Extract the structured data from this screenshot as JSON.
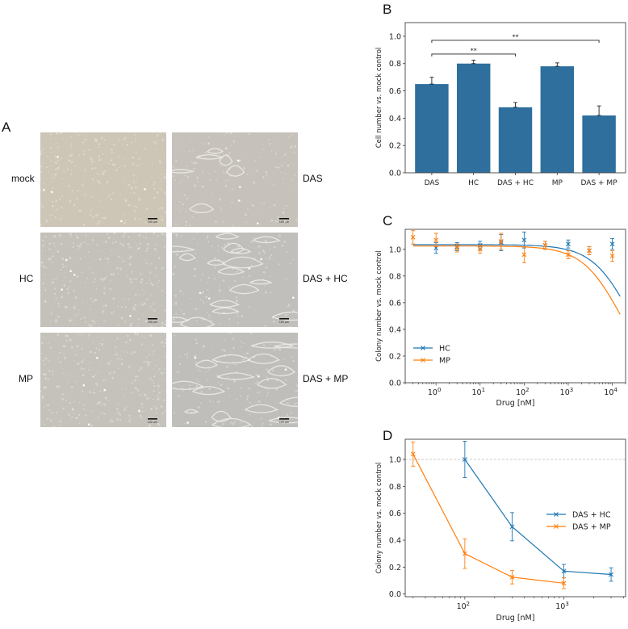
{
  "figure": {
    "panels": {
      "A": {
        "letter": "A",
        "row_labels": [
          "mock",
          "HC",
          "MP"
        ],
        "col2_labels": [
          "DAS",
          "DAS + HC",
          "DAS + MP"
        ],
        "scale_bar": "100 µm",
        "images": [
          {
            "condition": "mock",
            "tone": "#cdc5b6",
            "pattern": "confluent"
          },
          {
            "condition": "DAS",
            "tone": "#c6c2bb",
            "pattern": "patchy"
          },
          {
            "condition": "HC",
            "tone": "#c4c1bb",
            "pattern": "confluent"
          },
          {
            "condition": "DAS + HC",
            "tone": "#c1bfbb",
            "pattern": "sparse"
          },
          {
            "condition": "MP",
            "tone": "#c5c2bc",
            "pattern": "confluent"
          },
          {
            "condition": "DAS + MP",
            "tone": "#c0bebb",
            "pattern": "sparse"
          }
        ]
      },
      "B": {
        "letter": "B"
      },
      "C": {
        "letter": "C"
      },
      "D": {
        "letter": "D"
      }
    }
  },
  "chart_data": [
    {
      "panel": "B",
      "type": "bar",
      "categories": [
        "DAS",
        "HC",
        "DAS + HC",
        "MP",
        "DAS + MP"
      ],
      "values": [
        0.65,
        0.8,
        0.48,
        0.78,
        0.42
      ],
      "errors": [
        0.05,
        0.025,
        0.035,
        0.025,
        0.07
      ],
      "color": "#2e6f9e",
      "xlabel": "",
      "ylabel": "Cell number vs. mock control",
      "ylim": [
        0,
        1.1
      ],
      "yticks": [
        0.0,
        0.2,
        0.4,
        0.6,
        0.8,
        1.0
      ],
      "grid": false,
      "significance": [
        {
          "from": "DAS",
          "to": "DAS + HC",
          "label": "**",
          "y": 0.87
        },
        {
          "from": "DAS",
          "to": "DAS + MP",
          "label": "**",
          "y": 0.97
        }
      ]
    },
    {
      "panel": "C",
      "type": "line",
      "xscale": "log",
      "xlabel": "Drug [nM]",
      "ylabel": "Colony number vs. mock control",
      "ylim": [
        0,
        1.15
      ],
      "yticks": [
        0.0,
        0.2,
        0.4,
        0.6,
        0.8,
        1.0
      ],
      "xticks": [
        "10^0",
        "10^1",
        "10^2",
        "10^3",
        "10^4"
      ],
      "xlim": [
        0.2,
        20000
      ],
      "legend_position": "lower left",
      "series": [
        {
          "name": "HC",
          "color": "#1f77b4",
          "x": [
            1,
            3,
            10,
            30,
            100,
            300,
            1000,
            3000,
            10000
          ],
          "y": [
            1.01,
            1.02,
            1.03,
            1.05,
            1.07,
            1.03,
            1.04,
            0.99,
            1.04
          ],
          "err": [
            0.04,
            0.03,
            0.03,
            0.06,
            0.06,
            0.03,
            0.03,
            0.03,
            0.04
          ],
          "fit": {
            "top": 1.035,
            "ic50": 200000,
            "hill": 1.0
          }
        },
        {
          "name": "MP",
          "color": "#ff7f0e",
          "x": [
            0.3,
            1,
            3,
            10,
            30,
            100,
            300,
            1000,
            3000,
            10000
          ],
          "y": [
            1.09,
            1.07,
            1.01,
            1.0,
            1.06,
            0.96,
            1.03,
            0.96,
            0.99,
            0.95
          ],
          "err": [
            0.05,
            0.05,
            0.03,
            0.03,
            0.06,
            0.06,
            0.03,
            0.03,
            0.03,
            0.04
          ],
          "fit": {
            "top": 1.025,
            "ic50": 120000,
            "hill": 1.0
          }
        }
      ]
    },
    {
      "panel": "D",
      "type": "line",
      "xscale": "log",
      "xlabel": "Drug [nM]",
      "ylabel": "Colony number vs. mock control",
      "ylim": [
        -0.02,
        1.15
      ],
      "yticks": [
        0.0,
        0.2,
        0.4,
        0.6,
        0.8,
        1.0
      ],
      "xticks": [
        "10^2",
        "10^3"
      ],
      "xlim": [
        25,
        4200
      ],
      "reference_line": 1.0,
      "legend_position": "center right",
      "series": [
        {
          "name": "DAS + HC",
          "color": "#1f77b4",
          "x": [
            100,
            300,
            1000,
            3000
          ],
          "y": [
            1.0,
            0.5,
            0.17,
            0.145
          ],
          "err": [
            0.135,
            0.105,
            0.05,
            0.05
          ]
        },
        {
          "name": "DAS + MP",
          "color": "#ff7f0e",
          "x": [
            30,
            100,
            300,
            1000
          ],
          "y": [
            1.04,
            0.3,
            0.125,
            0.08
          ],
          "err": [
            0.09,
            0.11,
            0.05,
            0.04
          ]
        }
      ]
    }
  ]
}
